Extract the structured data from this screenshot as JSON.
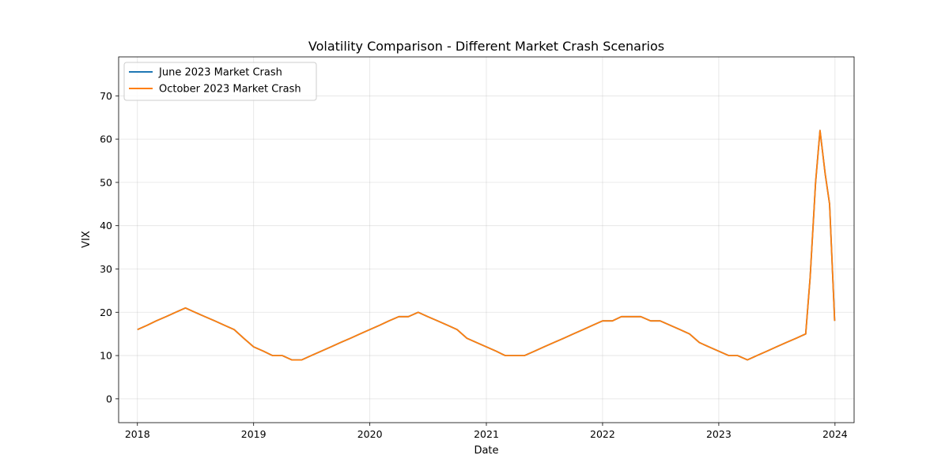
{
  "chart_data": {
    "type": "line",
    "title": "Volatility Comparison - Different Market Crash Scenarios",
    "xlabel": "Date",
    "ylabel": "VIX",
    "xlim": [
      "2017-11-03",
      "2024-03-01"
    ],
    "ylim": [
      -5.5,
      79
    ],
    "x_ticks": [
      "2018",
      "2019",
      "2020",
      "2021",
      "2022",
      "2023",
      "2024"
    ],
    "y_ticks": [
      0,
      10,
      20,
      30,
      40,
      50,
      60,
      70
    ],
    "grid": true,
    "legend_position": "top-left",
    "colors": {
      "June 2023 Market Crash": "#1f77b4",
      "October 2023 Market Crash": "#ff7f0e"
    },
    "series": [
      {
        "name": "June 2023 Market Crash",
        "color": "#1f77b4",
        "x": [
          "2018-01-01",
          "2018-02-01",
          "2018-03-01",
          "2018-04-01",
          "2018-05-01",
          "2018-06-01",
          "2018-07-01",
          "2018-08-01",
          "2018-09-01",
          "2018-10-01",
          "2018-11-01",
          "2018-12-01",
          "2019-01-01",
          "2019-02-01",
          "2019-03-01",
          "2019-04-01",
          "2019-05-01",
          "2019-06-01",
          "2019-07-01",
          "2019-08-01",
          "2019-09-01",
          "2019-10-01",
          "2019-11-01",
          "2019-12-01",
          "2020-01-01",
          "2020-02-01",
          "2020-03-01",
          "2020-04-01",
          "2020-05-01",
          "2020-06-01",
          "2020-07-01",
          "2020-08-01",
          "2020-09-01",
          "2020-10-01",
          "2020-11-01",
          "2020-12-01",
          "2021-01-01",
          "2021-02-01",
          "2021-03-01",
          "2021-04-01",
          "2021-05-01",
          "2021-06-01",
          "2021-07-01",
          "2021-08-01",
          "2021-09-01",
          "2021-10-01",
          "2021-11-01",
          "2021-12-01",
          "2022-01-01",
          "2022-02-01",
          "2022-03-01",
          "2022-04-01",
          "2022-05-01",
          "2022-06-01",
          "2022-07-01",
          "2022-08-01",
          "2022-09-01",
          "2022-10-01",
          "2022-11-01",
          "2022-12-01",
          "2023-01-01",
          "2023-02-01",
          "2023-03-01",
          "2023-04-01",
          "2023-05-01",
          "2023-06-01",
          "2023-07-01",
          "2023-08-01",
          "2023-09-01",
          "2023-10-01",
          "2023-10-15",
          "2023-11-01",
          "2023-11-15",
          "2023-12-01",
          "2023-12-15",
          "2023-12-31"
        ],
        "y": [
          16,
          17,
          18,
          19,
          20,
          21,
          20,
          19,
          18,
          17,
          16,
          14,
          12,
          11,
          10,
          10,
          9,
          9,
          10,
          11,
          12,
          13,
          14,
          15,
          16,
          17,
          18,
          19,
          19,
          20,
          19,
          18,
          17,
          16,
          14,
          13,
          12,
          11,
          10,
          10,
          10,
          11,
          12,
          13,
          14,
          15,
          16,
          17,
          18,
          18,
          19,
          19,
          19,
          18,
          18,
          17,
          16,
          15,
          13,
          12,
          11,
          10,
          10,
          9,
          10,
          11,
          12,
          13,
          14,
          15,
          28,
          50,
          62,
          52,
          45,
          18
        ]
      },
      {
        "name": "October 2023 Market Crash",
        "color": "#ff7f0e",
        "x": [
          "2018-01-01",
          "2018-02-01",
          "2018-03-01",
          "2018-04-01",
          "2018-05-01",
          "2018-06-01",
          "2018-07-01",
          "2018-08-01",
          "2018-09-01",
          "2018-10-01",
          "2018-11-01",
          "2018-12-01",
          "2019-01-01",
          "2019-02-01",
          "2019-03-01",
          "2019-04-01",
          "2019-05-01",
          "2019-06-01",
          "2019-07-01",
          "2019-08-01",
          "2019-09-01",
          "2019-10-01",
          "2019-11-01",
          "2019-12-01",
          "2020-01-01",
          "2020-02-01",
          "2020-03-01",
          "2020-04-01",
          "2020-05-01",
          "2020-06-01",
          "2020-07-01",
          "2020-08-01",
          "2020-09-01",
          "2020-10-01",
          "2020-11-01",
          "2020-12-01",
          "2021-01-01",
          "2021-02-01",
          "2021-03-01",
          "2021-04-01",
          "2021-05-01",
          "2021-06-01",
          "2021-07-01",
          "2021-08-01",
          "2021-09-01",
          "2021-10-01",
          "2021-11-01",
          "2021-12-01",
          "2022-01-01",
          "2022-02-01",
          "2022-03-01",
          "2022-04-01",
          "2022-05-01",
          "2022-06-01",
          "2022-07-01",
          "2022-08-01",
          "2022-09-01",
          "2022-10-01",
          "2022-11-01",
          "2022-12-01",
          "2023-01-01",
          "2023-02-01",
          "2023-03-01",
          "2023-04-01",
          "2023-05-01",
          "2023-06-01",
          "2023-07-01",
          "2023-08-01",
          "2023-09-01",
          "2023-10-01",
          "2023-10-15",
          "2023-11-01",
          "2023-11-15",
          "2023-12-01",
          "2023-12-15",
          "2023-12-31"
        ],
        "y": [
          16,
          17,
          18,
          19,
          20,
          21,
          20,
          19,
          18,
          17,
          16,
          14,
          12,
          11,
          10,
          10,
          9,
          9,
          10,
          11,
          12,
          13,
          14,
          15,
          16,
          17,
          18,
          19,
          19,
          20,
          19,
          18,
          17,
          16,
          14,
          13,
          12,
          11,
          10,
          10,
          10,
          11,
          12,
          13,
          14,
          15,
          16,
          17,
          18,
          18,
          19,
          19,
          19,
          18,
          18,
          17,
          16,
          15,
          13,
          12,
          11,
          10,
          10,
          9,
          10,
          11,
          12,
          13,
          14,
          15,
          28,
          50,
          62,
          52,
          45,
          18
        ]
      }
    ]
  }
}
